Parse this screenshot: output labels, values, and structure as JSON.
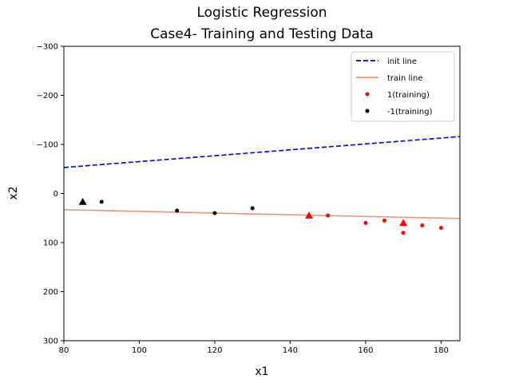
{
  "chart_data": {
    "type": "scatter",
    "title": [
      "Logistic Regression",
      "Case4- Training and Testing Data"
    ],
    "xlabel": "x1",
    "ylabel": "x2",
    "xlim": [
      80,
      185
    ],
    "ylim": [
      300,
      -300
    ],
    "y_inverted": true,
    "grid": false,
    "legend_position": "top-right",
    "x_ticks": [
      80,
      100,
      120,
      140,
      160,
      180
    ],
    "y_ticks": [
      -300,
      -200,
      -100,
      0,
      100,
      200,
      300
    ],
    "y_tick_labels": [
      "−300",
      "−200",
      "−100",
      "0",
      "100",
      "200",
      "300"
    ],
    "lines": [
      {
        "name": "init line",
        "style": "dashed",
        "color": "#0000cc",
        "points": [
          [
            80,
            -53
          ],
          [
            185,
            -116
          ]
        ]
      },
      {
        "name": "train line",
        "style": "solid",
        "color": "#e8957a",
        "points": [
          [
            80,
            33
          ],
          [
            185,
            51
          ]
        ]
      }
    ],
    "series": [
      {
        "name": "1(training)",
        "color": "#ff0000",
        "marker": "circle",
        "points": [
          [
            150,
            45
          ],
          [
            160,
            60
          ],
          [
            165,
            55
          ],
          [
            170,
            80
          ],
          [
            175,
            65
          ],
          [
            180,
            70
          ]
        ]
      },
      {
        "name": "-1(training)",
        "color": "#000000",
        "marker": "circle",
        "points": [
          [
            90,
            17
          ],
          [
            110,
            35
          ],
          [
            120,
            40
          ],
          [
            130,
            30
          ]
        ]
      },
      {
        "name": "",
        "color": "#ff0000",
        "marker": "triangle",
        "points": [
          [
            145,
            45
          ],
          [
            170,
            60
          ]
        ]
      },
      {
        "name": "",
        "color": "#000000",
        "marker": "triangle",
        "points": [
          [
            85,
            17
          ]
        ]
      }
    ]
  }
}
